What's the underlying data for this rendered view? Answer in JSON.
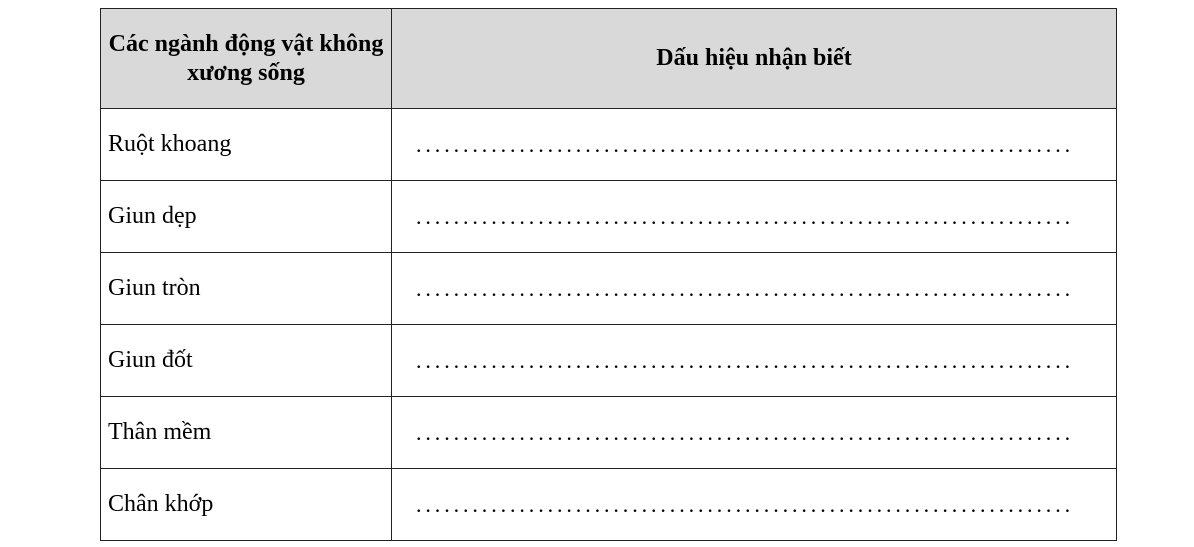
{
  "table": {
    "headers": [
      "Các ngành động vật không xương sống",
      "Dấu hiệu nhận biết"
    ],
    "rows": [
      {
        "name": "Ruột khoang",
        "answer": "......................................................................"
      },
      {
        "name": "Giun dẹp",
        "answer": "......................................................................"
      },
      {
        "name": "Giun tròn",
        "answer": "......................................................................"
      },
      {
        "name": "Giun đốt",
        "answer": "......................................................................"
      },
      {
        "name": "Thân mềm",
        "answer": "......................................................................"
      },
      {
        "name": "Chân khớp",
        "answer": "......................................................................"
      }
    ]
  }
}
